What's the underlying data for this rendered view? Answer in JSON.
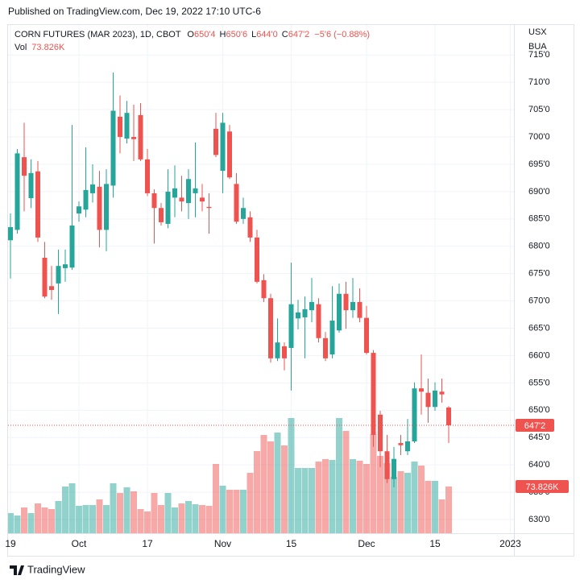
{
  "published": "Published on TradingView.com, Dec 19, 2022 17:10 UTC-6",
  "footer": "TradingView",
  "chart_data": {
    "type": "candlestick",
    "title": "CORN FUTURES (MAR 2023), 1D, CBOT",
    "ohlc_labels": [
      {
        "name": "O",
        "value": "650'4"
      },
      {
        "name": "H",
        "value": "650'6"
      },
      {
        "name": "L",
        "value": "644'0"
      },
      {
        "name": "C",
        "value": "647'2"
      }
    ],
    "change": "−5'6 (−0.88%)",
    "volume_name": "Vol",
    "volume_label": "73.826K",
    "currency": "USX",
    "unit": "BUA",
    "up_color": "#26a69a",
    "down_color": "#ef5350",
    "grid": true,
    "categories": [
      "19",
      null,
      null,
      null,
      null,
      null,
      null,
      null,
      null,
      null,
      "Oct",
      null,
      null,
      null,
      null,
      null,
      null,
      null,
      null,
      null,
      "17",
      null,
      null,
      null,
      null,
      null,
      null,
      null,
      null,
      null,
      null,
      "Nov",
      null,
      null,
      null,
      null,
      null,
      null,
      null,
      null,
      null,
      "15",
      null,
      null,
      null,
      null,
      null,
      null,
      null,
      null,
      null,
      null,
      "Dec",
      null,
      null,
      null,
      null,
      null,
      null,
      null,
      null,
      null,
      "15",
      null,
      null,
      null,
      null,
      null,
      null,
      null,
      null,
      null,
      null,
      "2023"
    ],
    "open": [
      681.1,
      683.0,
      696.3,
      688.8,
      693.7,
      677.9,
      672.7,
      673.2,
      676.0,
      676.1,
      686.0,
      686.7,
      689.7,
      690.9,
      683.0,
      691.1,
      703.7,
      699.7,
      700.0,
      704.0,
      695.9,
      689.7,
      687.0,
      684.1,
      688.9,
      688.9,
      687.9,
      689.7,
      688.9,
      687.2,
      701.5,
      693.8,
      701.0,
      691.4,
      685.0,
      685.3,
      681.6,
      673.8,
      670.5,
      659.5,
      661.7,
      661.4,
      666.8,
      667.0,
      668.3,
      669.4,
      663.2,
      660.2,
      664.6,
      671.3,
      668.3,
      669.8,
      666.9,
      660.5,
      649.2,
      642.5,
      637.4,
      644.0,
      642.5,
      644.3,
      654.0,
      653.2,
      650.6,
      653.4,
      650.5,
      null,
      null,
      null,
      null,
      null,
      null,
      null,
      null,
      null
    ],
    "high": [
      686.0,
      697.8,
      702.6,
      695.9,
      695.6,
      680.8,
      676.4,
      679.4,
      679.4,
      702.2,
      688.2,
      698.1,
      695.0,
      693.8,
      694.1,
      711.8,
      707.6,
      706.6,
      705.9,
      706.2,
      697.8,
      690.4,
      687.9,
      694.1,
      694.8,
      692.9,
      694.1,
      699.0,
      691.4,
      689.7,
      704.4,
      704.4,
      702.2,
      693.4,
      688.9,
      686.4,
      683.0,
      674.9,
      671.3,
      666.8,
      662.4,
      677.0,
      670.2,
      670.8,
      674.2,
      670.5,
      664.3,
      672.7,
      673.2,
      673.5,
      674.2,
      672.3,
      669.1,
      661.0,
      649.9,
      645.5,
      643.3,
      645.5,
      648.4,
      655.1,
      660.2,
      655.8,
      655.1,
      655.8,
      650.75,
      null,
      null,
      null,
      null,
      null,
      null,
      null,
      null,
      null
    ],
    "low": [
      674.1,
      682.3,
      686.4,
      687.0,
      680.8,
      670.5,
      670.2,
      667.6,
      673.5,
      675.7,
      684.5,
      685.3,
      688.0,
      679.8,
      679.1,
      688.9,
      697.0,
      698.8,
      695.6,
      695.6,
      689.2,
      680.5,
      683.8,
      683.3,
      685.3,
      686.4,
      685.0,
      685.3,
      686.4,
      682.3,
      696.3,
      689.7,
      692.3,
      684.1,
      684.1,
      680.8,
      673.2,
      669.8,
      658.7,
      659.0,
      657.3,
      653.6,
      664.8,
      659.5,
      666.1,
      662.4,
      659.0,
      659.5,
      664.2,
      664.9,
      666.9,
      666.1,
      660.2,
      643.3,
      639.6,
      636.7,
      635.9,
      641.8,
      641.8,
      644.0,
      649.2,
      647.7,
      649.9,
      651.4,
      644.0,
      null,
      null,
      null,
      null,
      null,
      null,
      null,
      null,
      null
    ],
    "close": [
      683.5,
      697.0,
      692.9,
      693.4,
      681.6,
      670.8,
      672.0,
      676.4,
      676.7,
      683.8,
      687.3,
      690.3,
      691.3,
      683.0,
      691.4,
      704.8,
      700.0,
      704.4,
      699.6,
      695.9,
      689.7,
      687.0,
      684.4,
      690.0,
      690.6,
      688.2,
      692.3,
      690.6,
      688.2,
      687.0,
      696.7,
      702.6,
      692.6,
      684.5,
      687.0,
      681.6,
      673.5,
      670.5,
      659.5,
      662.4,
      659.5,
      669.4,
      667.9,
      668.5,
      669.8,
      663.2,
      659.5,
      666.4,
      671.3,
      668.3,
      669.8,
      666.9,
      660.5,
      645.5,
      642.5,
      637.4,
      641.1,
      643.6,
      644.3,
      654.0,
      653.4,
      650.6,
      653.6,
      652.9,
      647.25,
      null,
      null,
      null,
      null,
      null,
      null,
      null,
      null,
      null
    ],
    "volume": [
      31800,
      27984,
      40704,
      31800,
      47064,
      40704,
      38160,
      50880,
      73776,
      78864,
      43248,
      44520,
      44520,
      53424,
      44520,
      78864,
      63600,
      72504,
      66144,
      38160,
      34344,
      63600,
      44520,
      63600,
      40704,
      47064,
      50880,
      45792,
      44520,
      43248,
      109392,
      75048,
      68688,
      68688,
      68688,
      95400,
      129744,
      155184,
      145008,
      159000,
      138648,
      181896,
      103032,
      103032,
      103032,
      113208,
      117024,
      115752,
      181896,
      161544,
      117024,
      114480,
      109392,
      156456,
      122112,
      110664,
      89040,
      97944,
      95400,
      113208,
      106848,
      82680,
      82680,
      53424,
      73826,
      null,
      null,
      null,
      null,
      null,
      null,
      null,
      null,
      null
    ],
    "ylim": [
      627.5,
      719.9
    ],
    "yticks": [
      {
        "value": 630,
        "label": "630'0"
      },
      {
        "value": 635,
        "label": "635'0"
      },
      {
        "value": 640,
        "label": "640'0"
      },
      {
        "value": 645,
        "label": "645'0"
      },
      {
        "value": 650,
        "label": "650'0"
      },
      {
        "value": 655,
        "label": "655'0"
      },
      {
        "value": 660,
        "label": "660'0"
      },
      {
        "value": 665,
        "label": "665'0"
      },
      {
        "value": 670,
        "label": "670'0"
      },
      {
        "value": 675,
        "label": "675'0"
      },
      {
        "value": 680,
        "label": "680'0"
      },
      {
        "value": 685,
        "label": "685'0"
      },
      {
        "value": 690,
        "label": "690'0"
      },
      {
        "value": 695,
        "label": "695'0"
      },
      {
        "value": 700,
        "label": "700'0"
      },
      {
        "value": 705,
        "label": "705'0"
      },
      {
        "value": 710,
        "label": "710'0"
      },
      {
        "value": 715,
        "label": "715'0"
      }
    ]
  }
}
